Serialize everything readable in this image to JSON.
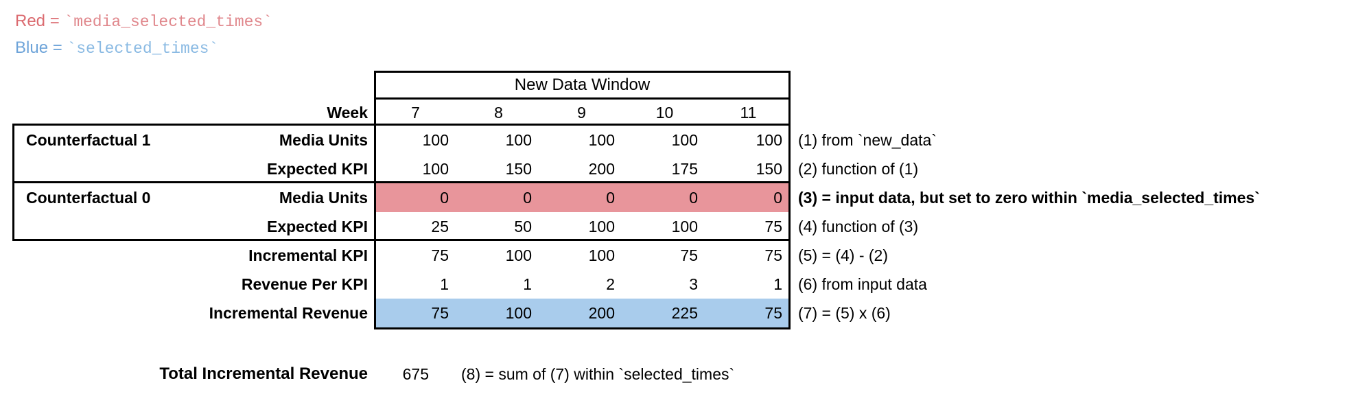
{
  "legend": {
    "red_label": "Red",
    "equals": " = ",
    "red_code": "`media_selected_times`",
    "blue_label": "Blue",
    "blue_code": "`selected_times`",
    "red_color": "#DB6B70",
    "red_code_color": "#E0878C",
    "blue_color": "#6EA4D9",
    "blue_code_color": "#8ABAE3"
  },
  "table": {
    "header": "New Data Window",
    "week_label": "Week",
    "weeks": [
      "7",
      "8",
      "9",
      "10",
      "11"
    ],
    "group1_label": "Counterfactual 1",
    "group0_label": "Counterfactual 0",
    "red_bg": "#E8959B",
    "blue_bg": "#A9CCEC",
    "rows": [
      {
        "label": "Media Units",
        "values": [
          "100",
          "100",
          "100",
          "100",
          "100"
        ],
        "annotation": "(1) from `new_data`"
      },
      {
        "label": "Expected KPI",
        "values": [
          "100",
          "150",
          "200",
          "175",
          "150"
        ],
        "annotation": "(2) function of (1)"
      },
      {
        "label": "Media Units",
        "values": [
          "0",
          "0",
          "0",
          "0",
          "0"
        ],
        "annotation": "(3) = input data, but set to zero within `media_selected_times`"
      },
      {
        "label": "Expected KPI",
        "values": [
          "25",
          "50",
          "100",
          "100",
          "75"
        ],
        "annotation": "(4) function of (3)"
      },
      {
        "label": "Incremental KPI",
        "values": [
          "75",
          "100",
          "100",
          "75",
          "75"
        ],
        "annotation": "(5) = (4) - (2)"
      },
      {
        "label": "Revenue Per KPI",
        "values": [
          "1",
          "1",
          "2",
          "3",
          "1"
        ],
        "annotation": "(6) from input data"
      },
      {
        "label": "Incremental Revenue",
        "values": [
          "75",
          "100",
          "200",
          "225",
          "75"
        ],
        "annotation": "(7) = (5) x (6)"
      }
    ]
  },
  "total": {
    "label": "Total Incremental Revenue",
    "value": "675",
    "annotation": "(8) = sum of (7) within `selected_times`"
  }
}
